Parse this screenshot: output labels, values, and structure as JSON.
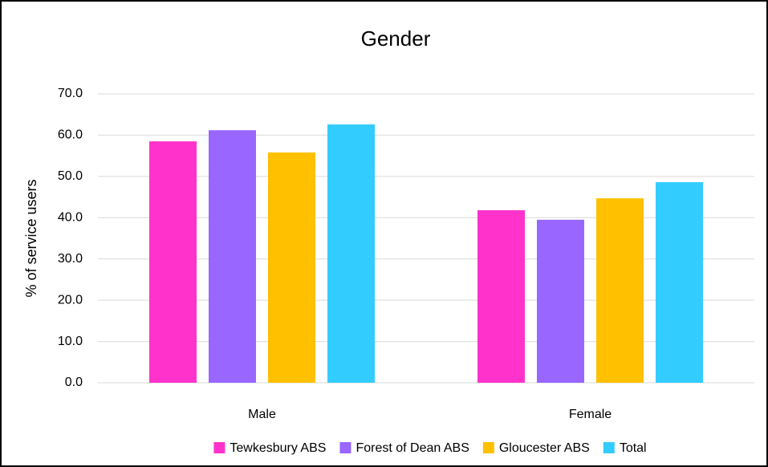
{
  "chart_data": {
    "type": "bar",
    "title": "Gender",
    "y_label": "% of service users",
    "categories": [
      "Male",
      "Female"
    ],
    "series": [
      {
        "name": "Tewkesbury ABS",
        "color": "#ff33cc",
        "values": [
          58.5,
          41.8
        ]
      },
      {
        "name": "Forest of Dean ABS",
        "color": "#9966ff",
        "values": [
          61.2,
          39.5
        ]
      },
      {
        "name": "Gloucester ABS",
        "color": "#ffc000",
        "values": [
          55.8,
          44.7
        ]
      },
      {
        "name": "Total",
        "color": "#33ccff",
        "values": [
          62.6,
          48.6
        ]
      }
    ],
    "ylim": [
      0,
      70
    ],
    "yticks": [
      {
        "value": 0,
        "label": "0.0"
      },
      {
        "value": 10,
        "label": "10.0"
      },
      {
        "value": 20,
        "label": "20.0"
      },
      {
        "value": 30,
        "label": "30.0"
      },
      {
        "value": 40,
        "label": "40.0"
      },
      {
        "value": 50,
        "label": "50.0"
      },
      {
        "value": 60,
        "label": "60.0"
      },
      {
        "value": 70,
        "label": "70.0"
      }
    ],
    "grid": true,
    "legend": "bottom"
  }
}
